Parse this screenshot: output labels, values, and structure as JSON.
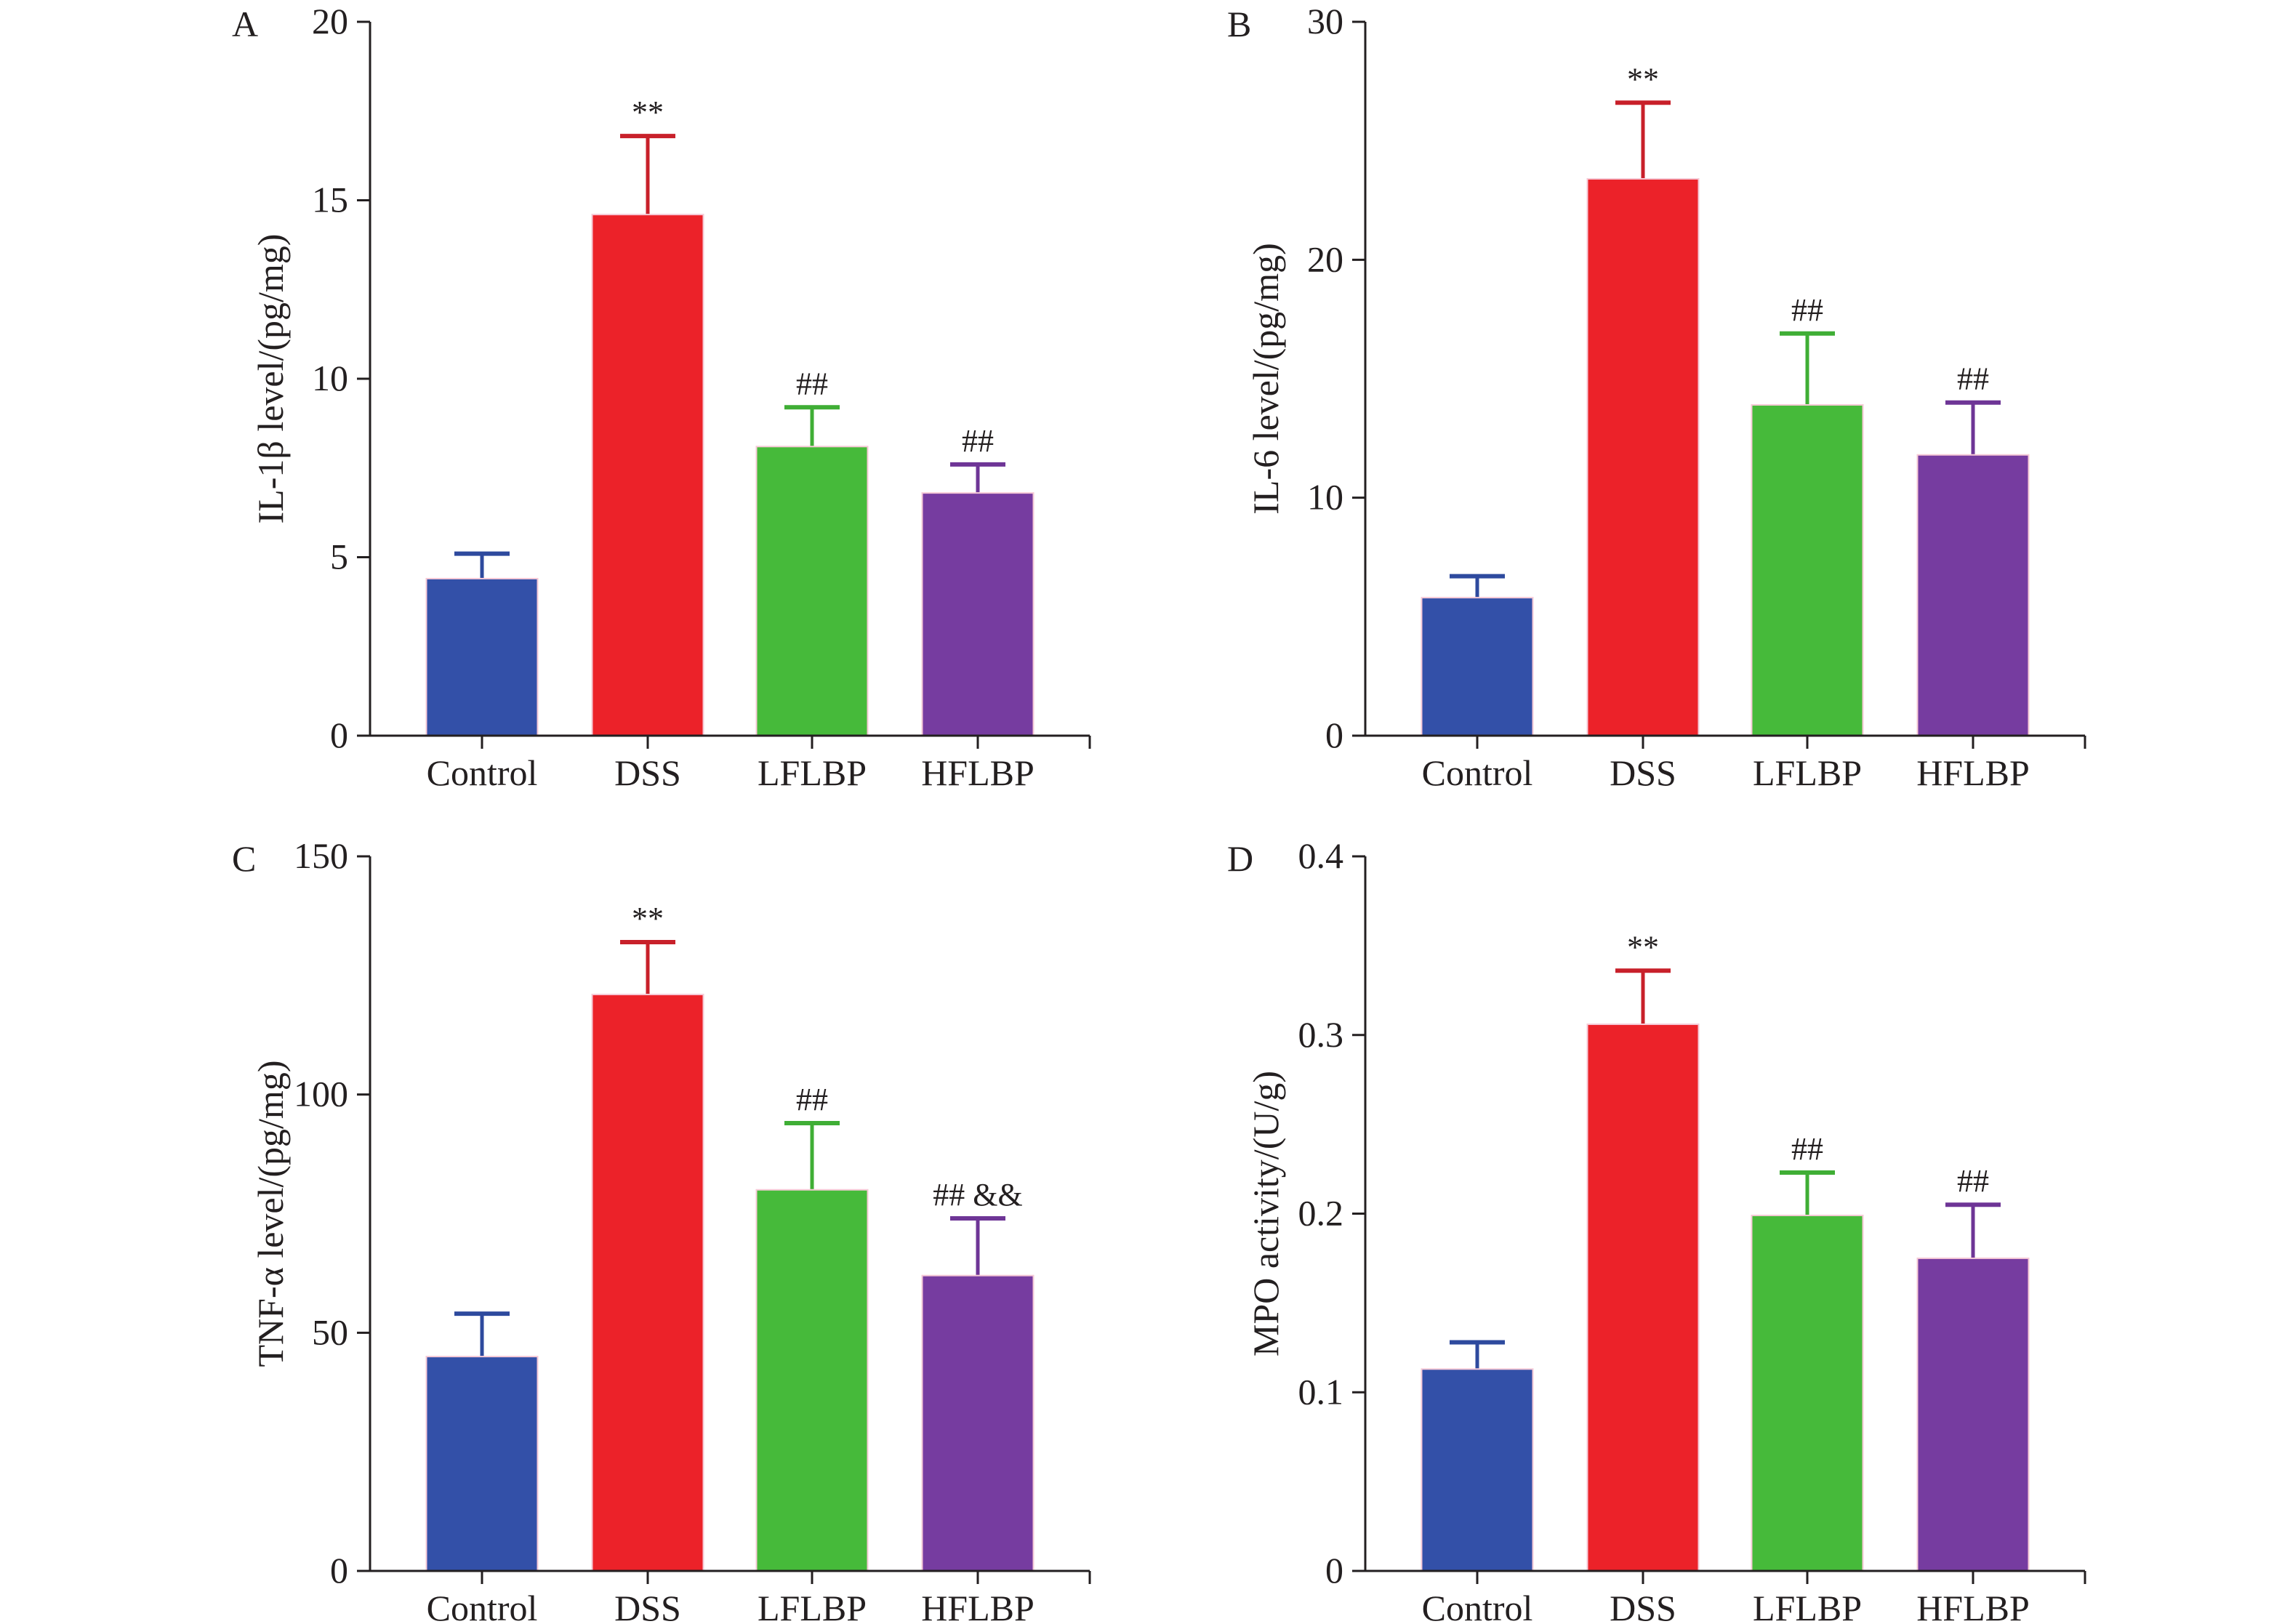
{
  "chart_data": [
    {
      "type": "bar",
      "panel_label": "A",
      "categories": [
        "Control",
        "DSS",
        "LFLBP",
        "HFLBP"
      ],
      "values": [
        4.4,
        14.6,
        8.1,
        6.8
      ],
      "errors": [
        0.7,
        2.2,
        1.1,
        0.8
      ],
      "annotations": [
        "",
        "**",
        "##",
        "##"
      ],
      "ylabel": "IL-1β level/(pg/mg)",
      "ylim": [
        0,
        20
      ],
      "yticks": [
        0,
        5,
        10,
        15,
        20
      ],
      "grid": false
    },
    {
      "type": "bar",
      "panel_label": "B",
      "categories": [
        "Control",
        "DSS",
        "LFLBP",
        "HFLBP"
      ],
      "values": [
        5.8,
        23.4,
        13.9,
        11.8
      ],
      "errors": [
        0.9,
        3.2,
        3.0,
        2.2
      ],
      "annotations": [
        "",
        "**",
        "##",
        "##"
      ],
      "ylabel": "IL-6 level/(pg/mg)",
      "ylim": [
        0,
        30
      ],
      "yticks": [
        0,
        10,
        20,
        30
      ],
      "grid": false
    },
    {
      "type": "bar",
      "panel_label": "C",
      "categories": [
        "Control",
        "DSS",
        "LFLBP",
        "HFLBP"
      ],
      "values": [
        45,
        121,
        80,
        62
      ],
      "errors": [
        9,
        11,
        14,
        12
      ],
      "annotations": [
        "",
        "**",
        "##",
        "## &&"
      ],
      "ylabel": "TNF-α level/(pg/mg)",
      "ylim": [
        0,
        150
      ],
      "yticks": [
        0,
        50,
        100,
        150
      ],
      "grid": false
    },
    {
      "type": "bar",
      "panel_label": "D",
      "categories": [
        "Control",
        "DSS",
        "LFLBP",
        "HFLBP"
      ],
      "values": [
        0.113,
        0.306,
        0.199,
        0.175
      ],
      "errors": [
        0.015,
        0.03,
        0.024,
        0.03
      ],
      "annotations": [
        "",
        "**",
        "##",
        "##"
      ],
      "ylabel": "MPO activity/(U/g)",
      "ylim": [
        0,
        0.4
      ],
      "yticks": [
        0,
        0.1,
        0.2,
        0.3,
        0.4
      ],
      "grid": false
    }
  ],
  "colors": {
    "bars": [
      "#3350A8",
      "#EC2229",
      "#46BA3A",
      "#763CA0"
    ],
    "errors": [
      "#2E4A9E",
      "#C8202A",
      "#3FAE35",
      "#6E3596"
    ]
  }
}
